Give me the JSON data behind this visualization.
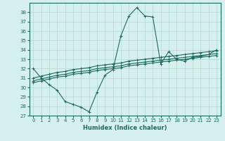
{
  "xlabel": "Humidex (Indice chaleur)",
  "ylabel": "",
  "bg_color": "#d6f0ee",
  "grid_color": "#b0d8d4",
  "line_color": "#1a6b5e",
  "xlim": [
    -0.5,
    23.5
  ],
  "ylim": [
    27,
    39
  ],
  "xticks": [
    0,
    1,
    2,
    3,
    4,
    5,
    6,
    7,
    8,
    9,
    10,
    11,
    12,
    13,
    14,
    15,
    16,
    17,
    18,
    19,
    20,
    21,
    22,
    23
  ],
  "yticks": [
    27,
    28,
    29,
    30,
    31,
    32,
    33,
    34,
    35,
    36,
    37,
    38
  ],
  "series_jagged": [
    32,
    31,
    30.3,
    29.7,
    28.5,
    28.2,
    27.9,
    27.4,
    29.5,
    31.3,
    31.9,
    35.5,
    37.6,
    38.5,
    37.6,
    37.5,
    32.5,
    33.8,
    33.0,
    32.8,
    33.2,
    33.3,
    33.5,
    34.0
  ],
  "series_linear": [
    [
      30.5,
      30.7,
      30.9,
      31.1,
      31.2,
      31.4,
      31.5,
      31.6,
      31.8,
      31.9,
      32.0,
      32.1,
      32.3,
      32.4,
      32.5,
      32.6,
      32.7,
      32.8,
      32.9,
      33.0,
      33.1,
      33.2,
      33.3,
      33.4
    ],
    [
      30.7,
      30.9,
      31.1,
      31.3,
      31.4,
      31.6,
      31.7,
      31.8,
      32.0,
      32.1,
      32.2,
      32.3,
      32.5,
      32.6,
      32.7,
      32.8,
      32.9,
      33.0,
      33.1,
      33.2,
      33.3,
      33.4,
      33.5,
      33.6
    ],
    [
      31.0,
      31.2,
      31.4,
      31.6,
      31.7,
      31.9,
      32.0,
      32.1,
      32.3,
      32.4,
      32.5,
      32.6,
      32.8,
      32.9,
      33.0,
      33.1,
      33.2,
      33.3,
      33.4,
      33.5,
      33.6,
      33.7,
      33.8,
      33.9
    ]
  ],
  "marker": "+",
  "markersize": 3,
  "linewidth": 0.8
}
